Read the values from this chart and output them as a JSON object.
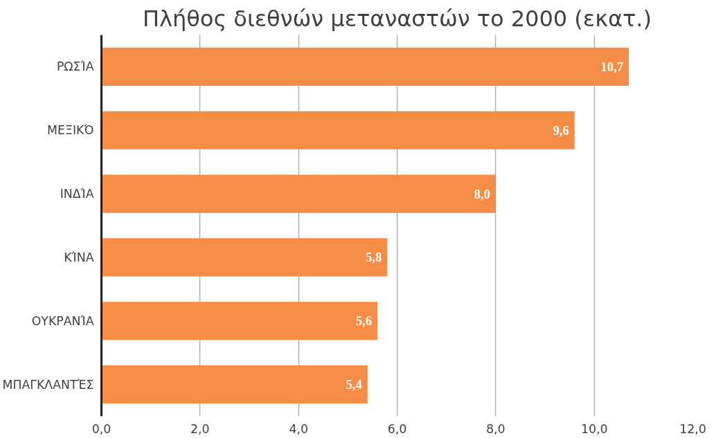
{
  "chart_data": {
    "type": "bar",
    "orientation": "horizontal",
    "title": "Πλήθος διεθνών μεταναστών το 2000 (εκατ.)",
    "categories": [
      "ΡΩΣΊΑ",
      "ΜΕΞΙΚΌ",
      "ΙΝΔΊΑ",
      "ΚΊΝΑ",
      "ΟΥΚΡΑΝΊΑ",
      "ΜΠΑΓΚΛΑΝΤΈΣ"
    ],
    "values": [
      10.7,
      9.6,
      8.0,
      5.8,
      5.6,
      5.4
    ],
    "value_labels": [
      "10,7",
      "9,6",
      "8,0",
      "5,8",
      "5,6",
      "5,4"
    ],
    "color": "#f58d47",
    "xlim": [
      0,
      12
    ],
    "xticks": [
      {
        "value": 0,
        "label": "0,0"
      },
      {
        "value": 2,
        "label": "2,0"
      },
      {
        "value": 4,
        "label": "4,0"
      },
      {
        "value": 6,
        "label": "6,0"
      },
      {
        "value": 8,
        "label": "8,0"
      },
      {
        "value": 10,
        "label": "10,0"
      },
      {
        "value": 12,
        "label": "12,0"
      }
    ],
    "grid": "x"
  }
}
